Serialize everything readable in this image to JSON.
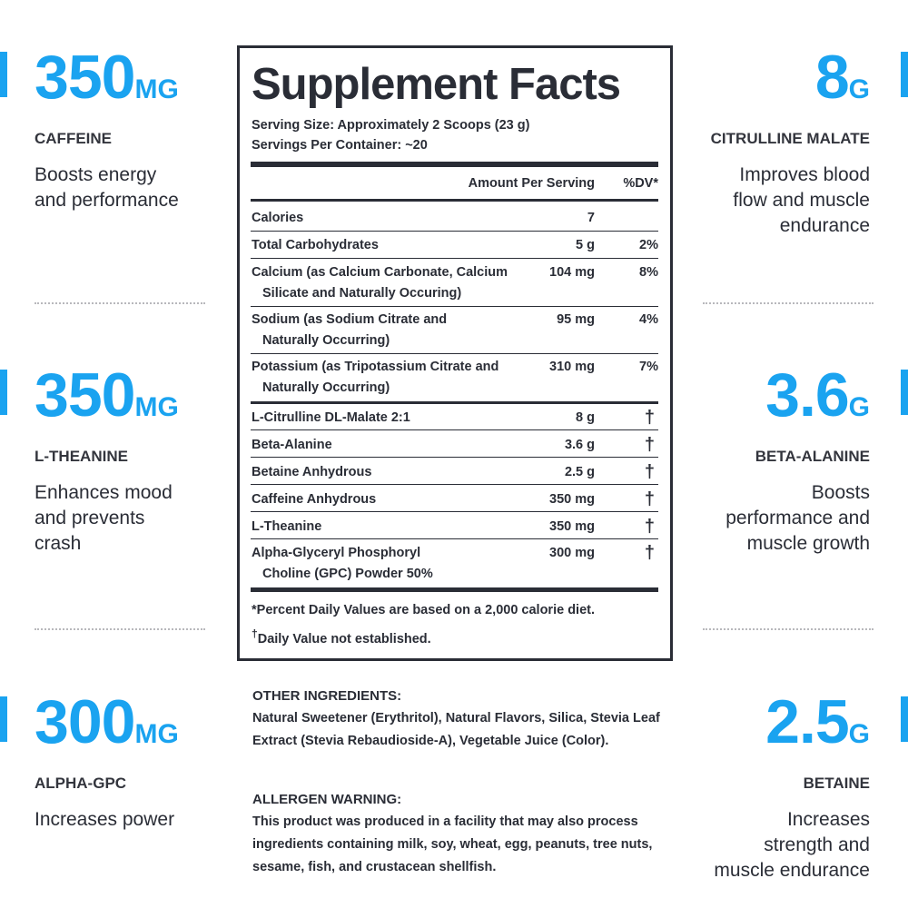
{
  "colors": {
    "accent": "#1aa3f0",
    "text": "#2a2d36"
  },
  "left_stats": [
    {
      "value": "350",
      "unit": "MG",
      "name": "CAFFEINE",
      "desc": [
        "Boosts energy",
        "and performance"
      ]
    },
    {
      "value": "350",
      "unit": "MG",
      "name": "L-THEANINE",
      "desc": [
        "Enhances mood",
        "and prevents",
        "crash"
      ]
    },
    {
      "value": "300",
      "unit": "MG",
      "name": "ALPHA-GPC",
      "desc": [
        "Increases power"
      ]
    }
  ],
  "right_stats": [
    {
      "value": "8",
      "unit": "G",
      "name": "CITRULLINE MALATE",
      "desc": [
        "Improves blood",
        "flow and muscle",
        "endurance"
      ]
    },
    {
      "value": "3.6",
      "unit": "G",
      "name": "BETA-ALANINE",
      "desc": [
        "Boosts",
        "performance and",
        "muscle growth"
      ]
    },
    {
      "value": "2.5",
      "unit": "G",
      "name": "BETAINE",
      "desc": [
        "Increases",
        "strength and",
        "muscle endurance"
      ]
    }
  ],
  "facts": {
    "title": "Supplement Facts",
    "serving_size": "Serving Size: Approximately 2 Scoops (23 g)",
    "servings_per_container": "Servings Per Container: ~20",
    "amount_header": "Amount Per Serving",
    "dv_header": "%DV*",
    "rows": [
      {
        "name": "Calories",
        "name2": "",
        "amount": "7",
        "dv": ""
      },
      {
        "name": "Total Carbohydrates",
        "name2": "",
        "amount": "5 g",
        "dv": "2%"
      },
      {
        "name": "Calcium (as Calcium Carbonate, Calcium",
        "name2": "Silicate and Naturally Occuring)",
        "amount": "104 mg",
        "dv": "8%"
      },
      {
        "name": "Sodium (as Sodium Citrate and",
        "name2": "Naturally Occurring)",
        "amount": "95 mg",
        "dv": "4%"
      },
      {
        "name": "Potassium (as Tripotassium Citrate and",
        "name2": "Naturally Occurring)",
        "amount": "310 mg",
        "dv": "7%"
      },
      {
        "name": "L-Citrulline DL-Malate 2:1",
        "name2": "",
        "amount": "8 g",
        "dv": "†"
      },
      {
        "name": "Beta-Alanine",
        "name2": "",
        "amount": "3.6 g",
        "dv": "†"
      },
      {
        "name": "Betaine Anhydrous",
        "name2": "",
        "amount": "2.5 g",
        "dv": "†"
      },
      {
        "name": "Caffeine Anhydrous",
        "name2": "",
        "amount": "350 mg",
        "dv": "†"
      },
      {
        "name": "L-Theanine",
        "name2": "",
        "amount": "350 mg",
        "dv": "†"
      },
      {
        "name": "Alpha-Glyceryl Phosphoryl",
        "name2": "Choline (GPC) Powder 50%",
        "amount": "300 mg",
        "dv": "†"
      }
    ],
    "footnote1": "*Percent Daily Values are based on a 2,000 calorie diet.",
    "footnote2_mark": "†",
    "footnote2": "Daily Value not established."
  },
  "other_ingredients": {
    "heading": "OTHER INGREDIENTS:",
    "text": "Natural Sweetener (Erythritol), Natural Flavors, Silica, Stevia Leaf Extract (Stevia Rebaudioside-A), Vegetable Juice (Color)."
  },
  "allergen": {
    "heading": "ALLERGEN WARNING:",
    "text": "This product was produced in a facility that may also process ingredients containing milk, soy, wheat, egg, peanuts, tree nuts, sesame, fish, and crustacean shellfish."
  }
}
